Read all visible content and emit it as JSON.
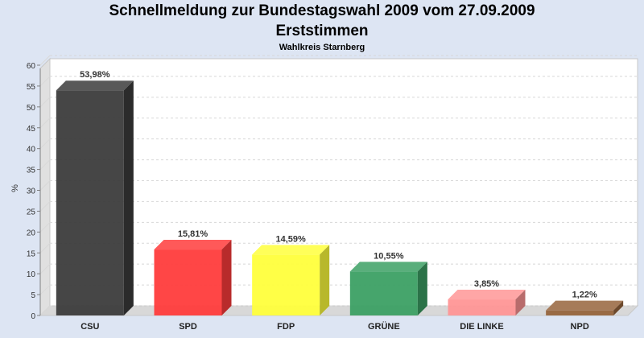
{
  "chart_data": {
    "type": "bar",
    "title": "Schnellmeldung zur Bundestagswahl 2009 vom 27.09.2009",
    "subtitle": "Erststimmen",
    "subsubtitle": "Wahlkreis Starnberg",
    "xlabel": "",
    "ylabel": "%",
    "ylim": [
      0,
      60
    ],
    "yticks": [
      0,
      5,
      10,
      15,
      20,
      25,
      30,
      35,
      40,
      45,
      50,
      55,
      60
    ],
    "categories": [
      "CSU",
      "SPD",
      "FDP",
      "GRÜNE",
      "DIE LINKE",
      "NPD"
    ],
    "values": [
      53.98,
      15.81,
      14.59,
      10.55,
      3.85,
      1.22
    ],
    "value_labels": [
      "53,98%",
      "15,81%",
      "14,59%",
      "10,55%",
      "3,85%",
      "1,22%"
    ],
    "colors": [
      "#3c3c3c",
      "#ff3c3c",
      "#ffff3c",
      "#3ca064",
      "#ff9696",
      "#96643c"
    ],
    "grid": true
  }
}
